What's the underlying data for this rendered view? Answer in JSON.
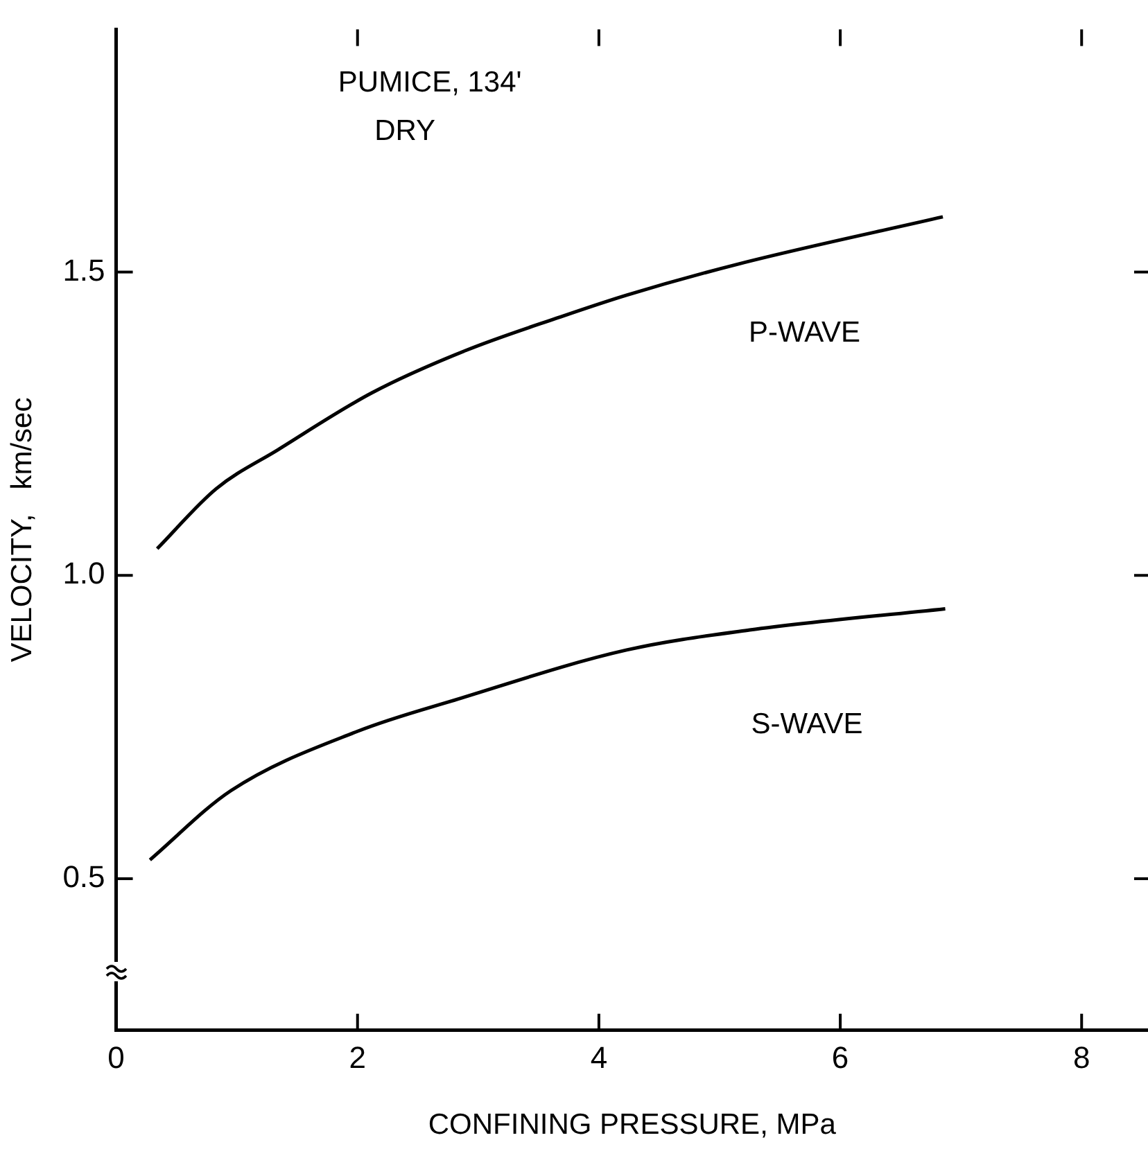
{
  "chart_data": {
    "type": "line",
    "title": "PUMICE, 134'",
    "subtitle": "DRY",
    "xlabel": "CONFINING PRESSURE, MPa",
    "ylabel": "VELOCITY,   km/sec",
    "xlim": [
      0,
      8.55
    ],
    "xticks": [
      0,
      2,
      4,
      6,
      8
    ],
    "ylim": [
      0.25,
      1.9
    ],
    "yticks": [
      {
        "value": 0.5,
        "label": "0.5"
      },
      {
        "value": 1,
        "label": "1.0"
      },
      {
        "value": 1.5,
        "label": "1.5"
      }
    ],
    "grid": false,
    "legend": false,
    "marker": "none",
    "line_style": "solid",
    "series": [
      {
        "name": "P-WAVE",
        "color": "#000000",
        "x": [
          0.34,
          0.83,
          1.34,
          2.12,
          2.9,
          3.68,
          4.23,
          5.17,
          6.85
        ],
        "values": [
          1.044,
          1.143,
          1.207,
          1.301,
          1.371,
          1.426,
          1.462,
          1.514,
          1.591
        ]
      },
      {
        "name": "S-WAVE",
        "color": "#000000",
        "x": [
          0.28,
          0.95,
          2.0,
          2.83,
          4.23,
          5.25,
          6.87
        ],
        "values": [
          0.531,
          0.645,
          0.743,
          0.796,
          0.877,
          0.91,
          0.945
        ]
      }
    ]
  }
}
